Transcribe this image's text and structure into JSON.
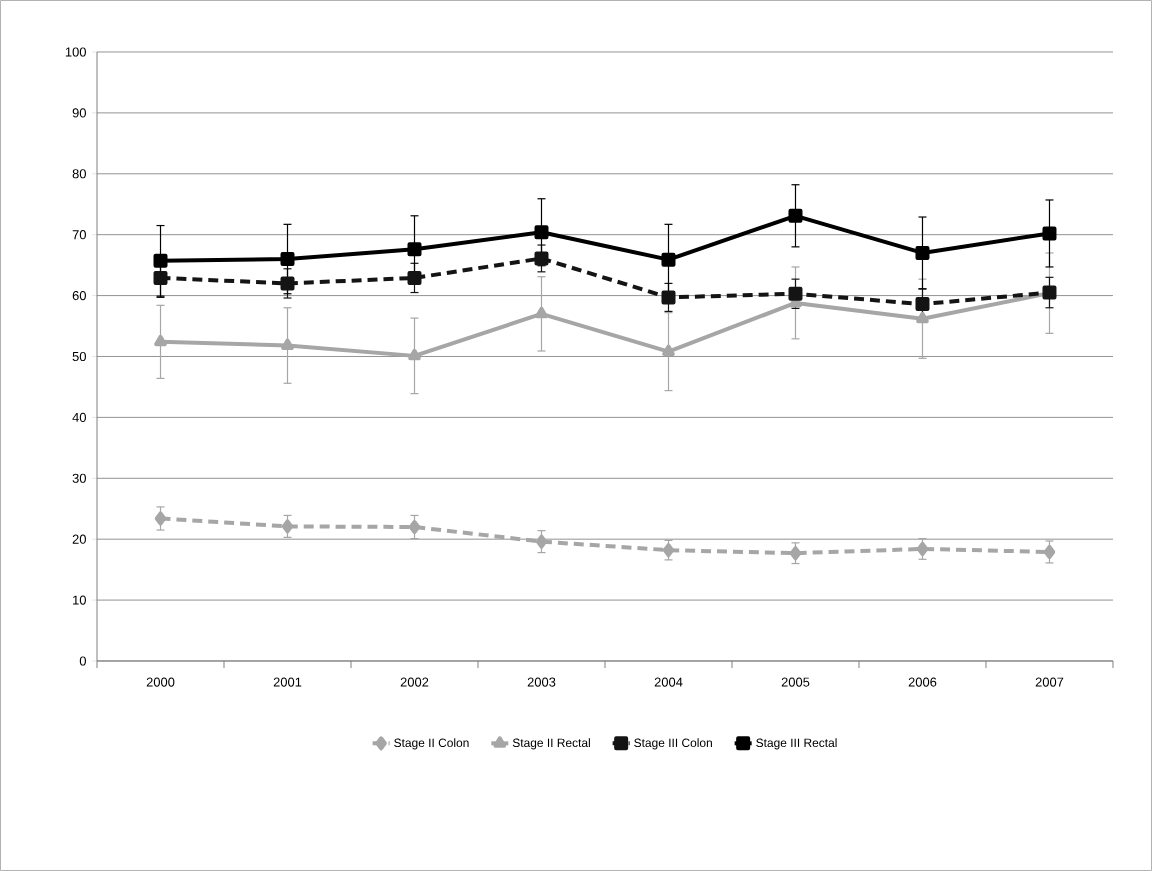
{
  "chart_data": {
    "type": "line",
    "categories": [
      "2000",
      "2001",
      "2002",
      "2003",
      "2004",
      "2005",
      "2006",
      "2007"
    ],
    "series": [
      {
        "name": "Stage II Colon",
        "color": "#a6a6a6",
        "marker": "diamond",
        "line_style": "dashed",
        "values": [
          23.4,
          22.1,
          22.0,
          19.6,
          18.2,
          17.7,
          18.4,
          17.9
        ],
        "errors": [
          1.9,
          1.8,
          1.9,
          1.8,
          1.6,
          1.7,
          1.7,
          1.8
        ]
      },
      {
        "name": "Stage II Rectal",
        "color": "#a6a6a6",
        "marker": "triangle",
        "line_style": "solid",
        "values": [
          52.4,
          51.8,
          50.1,
          57.0,
          50.8,
          58.8,
          56.2,
          60.4
        ],
        "errors": [
          6.0,
          6.2,
          6.2,
          6.1,
          6.4,
          5.9,
          6.5,
          6.6
        ]
      },
      {
        "name": "Stage III Colon",
        "color": "#141414",
        "marker": "square",
        "line_style": "dashed",
        "values": [
          62.9,
          62.0,
          62.9,
          66.1,
          59.7,
          60.3,
          58.6,
          60.5
        ],
        "errors": [
          3.2,
          2.4,
          2.4,
          2.2,
          2.3,
          2.4,
          2.5,
          2.5
        ]
      },
      {
        "name": "Stage III Rectal",
        "color": "#000000",
        "marker": "square",
        "line_style": "solid",
        "values": [
          65.7,
          66.0,
          67.6,
          70.4,
          65.9,
          73.1,
          67.0,
          70.2
        ],
        "errors": [
          5.8,
          5.7,
          5.5,
          5.5,
          5.8,
          5.1,
          5.9,
          5.5
        ]
      }
    ],
    "ylim": [
      0,
      100
    ],
    "yticks": [
      0,
      10,
      20,
      30,
      40,
      50,
      60,
      70,
      80,
      90,
      100
    ],
    "grid": "y",
    "legend": "bottom"
  }
}
